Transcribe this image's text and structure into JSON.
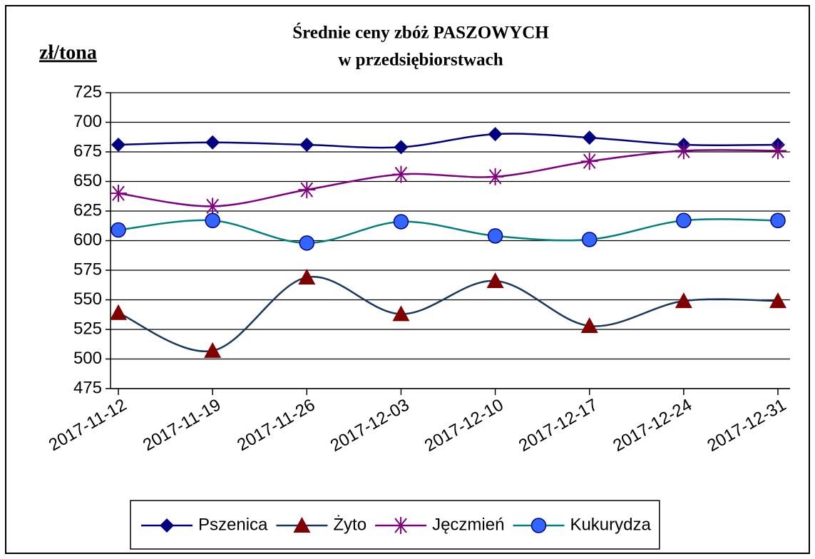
{
  "chart_data": {
    "type": "line",
    "title": [
      "Średnie ceny zbóż PASZOWYCH",
      "w przedsiębiorstwach"
    ],
    "y_label": "zł/tona",
    "categories": [
      "2017-11-12",
      "2017-11-19",
      "2017-11-26",
      "2017-12-03",
      "2017-12-10",
      "2017-12-17",
      "2017-12-24",
      "2017-12-31"
    ],
    "series": [
      {
        "name": "Pszenica",
        "color": "#000080",
        "marker": "diamond",
        "marker_color": "#000080",
        "values": [
          681,
          683,
          681,
          679,
          690,
          687,
          681,
          681
        ]
      },
      {
        "name": "Żyto",
        "color": "#17375e",
        "marker": "triangle",
        "marker_color": "#800000",
        "values": [
          539,
          507,
          569,
          538,
          566,
          528,
          549,
          549
        ]
      },
      {
        "name": "Jęczmień",
        "color": "#800080",
        "marker": "star",
        "marker_color": "#800080",
        "values": [
          640,
          629,
          643,
          656,
          654,
          667,
          676,
          676
        ]
      },
      {
        "name": "Kukurydza",
        "color": "#008080",
        "marker": "circle",
        "marker_color": "#3366ff",
        "values": [
          609,
          617,
          598,
          616,
          604,
          601,
          617,
          617
        ]
      }
    ],
    "ylim": [
      475,
      725
    ],
    "yticks": [
      475,
      500,
      525,
      550,
      575,
      600,
      625,
      650,
      675,
      700,
      725
    ],
    "grid": true,
    "smooth": true,
    "legend": "bottom"
  }
}
